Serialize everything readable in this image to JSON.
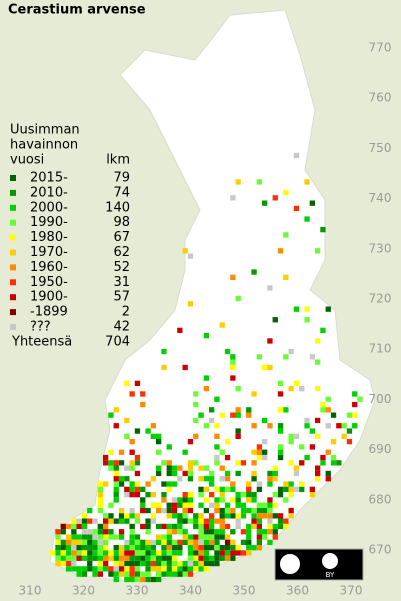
{
  "title": "Cerastium arvense",
  "legend": {
    "heading": [
      "Uusimman",
      "havainnon",
      "vuosi"
    ],
    "count_heading": "lkm",
    "rows": [
      {
        "label": "2015-",
        "count": 79,
        "color": "#006400"
      },
      {
        "label": "2010-",
        "count": 74,
        "color": "#009a00"
      },
      {
        "label": "2000-",
        "count": 140,
        "color": "#00d000"
      },
      {
        "label": "1990-",
        "count": 98,
        "color": "#66ff33"
      },
      {
        "label": "1980-",
        "count": 67,
        "color": "#ffff00"
      },
      {
        "label": "1970-",
        "count": 62,
        "color": "#ffcc00"
      },
      {
        "label": "1960-",
        "count": 52,
        "color": "#ff8c00"
      },
      {
        "label": "1950-",
        "count": 31,
        "color": "#ff3000"
      },
      {
        "label": "1900-",
        "count": 57,
        "color": "#cc0000"
      },
      {
        "label": "-1899",
        "count": 2,
        "color": "#800000"
      },
      {
        "label": "???",
        "count": 42,
        "color": "#c8c8c8"
      }
    ],
    "total_label": "Yhteensä",
    "total": 704
  },
  "x_axis": [
    310,
    320,
    330,
    340,
    350,
    360,
    370
  ],
  "y_axis": [
    770,
    760,
    750,
    740,
    730,
    720,
    710,
    700,
    690,
    680,
    670
  ],
  "license": "BY"
}
